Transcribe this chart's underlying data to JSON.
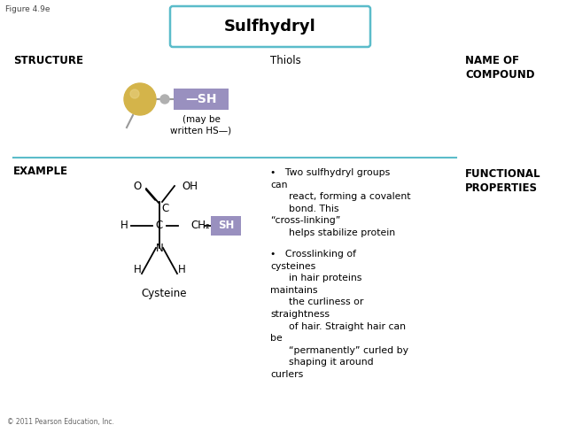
{
  "title": "Sulfhydryl",
  "figure_label": "Figure 4.9e",
  "copyright": "© 2011 Pearson Education, Inc.",
  "title_box_color": "#5bbcca",
  "title_bg_color": "#ffffff",
  "sh_box_color": "#9990bf",
  "sh_text_color": "#ffffff",
  "background_color": "#ffffff",
  "divider_color": "#5bbcca",
  "section_labels": {
    "structure": "STRUCTURE",
    "example": "EXAMPLE",
    "name_of_compound": "NAME OF\nCOMPOUND",
    "functional_properties": "FUNCTIONAL\nPROPERTIES"
  },
  "thiols_label": "Thiols",
  "sh_label": "—SH",
  "may_be_written": "(may be\nwritten HS—)",
  "cysteine_label": "Cysteine",
  "bullet1_line1": "•     Two sulfhydryl groups",
  "bullet1_rest": "can\n        react, forming a covalent\n        bond. This\n“cross-linking”\n        helps stabilize protein",
  "bullet2_line1": "•     Crosslinking of",
  "bullet2_rest": "cysteines\n        in hair proteins\nmaintains\n        the curliness or\nstraightness\n        of hair. Straight hair can\nbe\n        “permanently” curled by\n        shaping it around\ncurlers"
}
